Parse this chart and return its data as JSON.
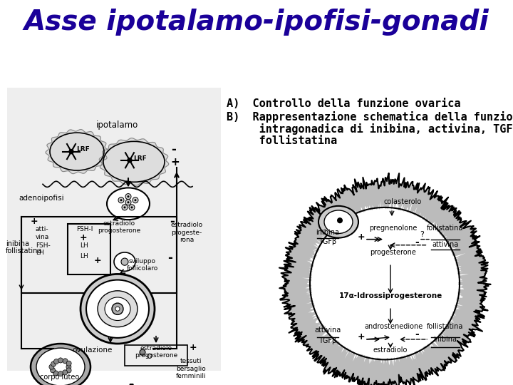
{
  "title": "Asse ipotalamo-ipofisi-gonadi",
  "title_color": "#1a0099",
  "title_bg_color": "#ffff55",
  "body_bg_color": "#ffffff",
  "text_line1": "A)  Controllo della funzione ovarica",
  "text_line2": "B)  Rappresentazione schematica della funzione",
  "text_line3": "     intragonadica di inibina, activina, TGFβ e",
  "text_line4": "     follistatina",
  "label_A": "A",
  "label_B": "B",
  "title_fontsize": 28,
  "text_fontsize": 11,
  "label_fontsize": 16
}
